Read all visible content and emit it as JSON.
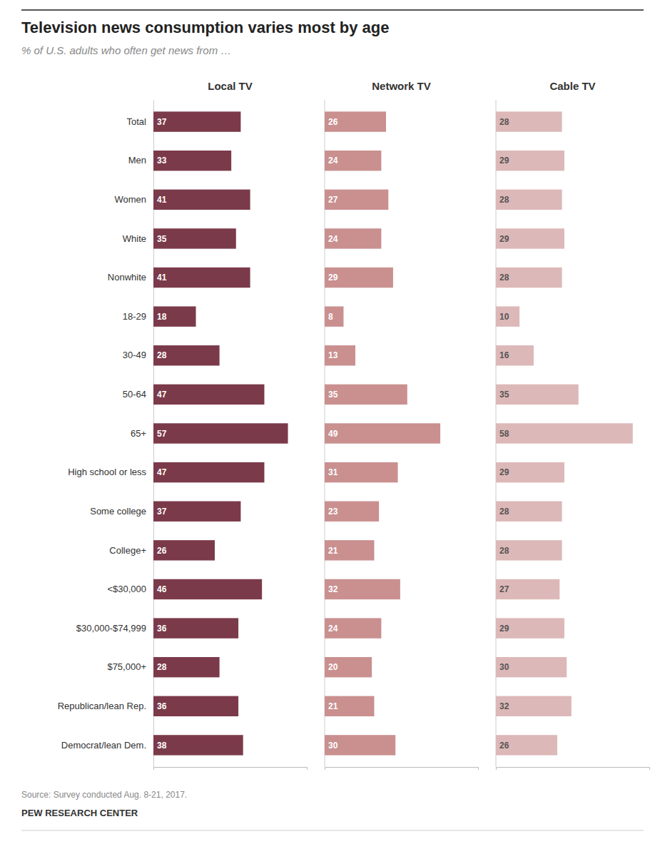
{
  "chart_data": {
    "type": "bar",
    "orientation": "horizontal",
    "title": "Television news consumption varies most by age",
    "subtitle": "% of U.S. adults who often get news from …",
    "annotations": [
      "Source: Survey conducted Aug. 8-21, 2017.",
      "PEW RESEARCH CENTER"
    ],
    "categories": [
      "Total",
      "Men",
      "Women",
      "White",
      "Nonwhite",
      "18-29",
      "30-49",
      "50-64",
      "65+",
      "High school or less",
      "Some college",
      "College+",
      "<$30,000",
      "$30,000-$74,999",
      "$75,000+",
      "Republican/lean Rep.",
      "Democrat/lean Dem."
    ],
    "series": [
      {
        "name": "Local TV",
        "color": "#7b3a4a",
        "values": [
          37,
          33,
          41,
          35,
          41,
          18,
          28,
          47,
          57,
          47,
          37,
          26,
          46,
          36,
          28,
          36,
          38
        ]
      },
      {
        "name": "Network TV",
        "color": "#c9908f",
        "values": [
          26,
          24,
          27,
          24,
          29,
          8,
          13,
          35,
          49,
          31,
          23,
          21,
          32,
          24,
          20,
          21,
          30
        ]
      },
      {
        "name": "Cable TV",
        "color": "#ddb8b8",
        "values": [
          28,
          29,
          28,
          29,
          28,
          10,
          16,
          35,
          58,
          29,
          28,
          28,
          27,
          29,
          30,
          32,
          26
        ]
      }
    ],
    "xlim": [
      0,
      65
    ],
    "data_labels": true,
    "tick_labels": "y",
    "grid": false
  }
}
